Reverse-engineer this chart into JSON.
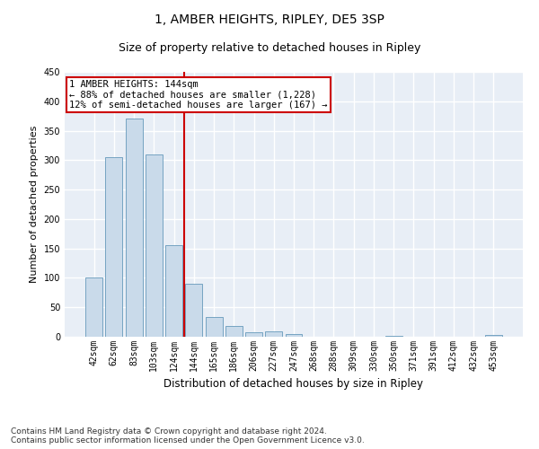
{
  "title": "1, AMBER HEIGHTS, RIPLEY, DE5 3SP",
  "subtitle": "Size of property relative to detached houses in Ripley",
  "xlabel": "Distribution of detached houses by size in Ripley",
  "ylabel": "Number of detached properties",
  "categories": [
    "42sqm",
    "62sqm",
    "83sqm",
    "103sqm",
    "124sqm",
    "144sqm",
    "165sqm",
    "186sqm",
    "206sqm",
    "227sqm",
    "247sqm",
    "268sqm",
    "288sqm",
    "309sqm",
    "330sqm",
    "350sqm",
    "371sqm",
    "391sqm",
    "412sqm",
    "432sqm",
    "453sqm"
  ],
  "values": [
    100,
    305,
    370,
    310,
    155,
    90,
    34,
    18,
    8,
    9,
    4,
    0,
    0,
    0,
    0,
    2,
    0,
    0,
    0,
    0,
    3
  ],
  "bar_color": "#c9daea",
  "bar_edge_color": "#6699bb",
  "annotation_text": "1 AMBER HEIGHTS: 144sqm\n← 88% of detached houses are smaller (1,228)\n12% of semi-detached houses are larger (167) →",
  "annotation_box_color": "#ffffff",
  "annotation_box_edge_color": "#cc0000",
  "vline_color": "#cc0000",
  "vline_x_index": 5,
  "ylim": [
    0,
    450
  ],
  "yticks": [
    0,
    50,
    100,
    150,
    200,
    250,
    300,
    350,
    400,
    450
  ],
  "bg_color": "#e8eef6",
  "grid_color": "#ffffff",
  "footer_line1": "Contains HM Land Registry data © Crown copyright and database right 2024.",
  "footer_line2": "Contains public sector information licensed under the Open Government Licence v3.0.",
  "title_fontsize": 10,
  "subtitle_fontsize": 9,
  "xlabel_fontsize": 8.5,
  "ylabel_fontsize": 8,
  "tick_fontsize": 7,
  "annotation_fontsize": 7.5,
  "footer_fontsize": 6.5
}
